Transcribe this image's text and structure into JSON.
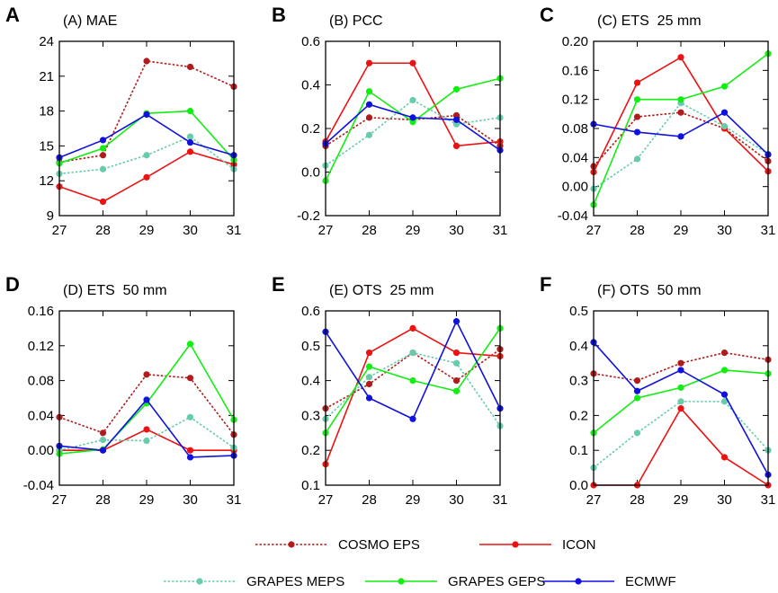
{
  "colors": {
    "COSMO EPS": "#b01c1c",
    "ICON": "#ee1111",
    "GRAPES MEPS": "#66ccaa",
    "GRAPES GEPS": "#11ee11",
    "ECMWF": "#1111dd"
  },
  "dash_style": {
    "COSMO EPS": "dotted",
    "ICON": "solid",
    "GRAPES MEPS": "dotted",
    "GRAPES GEPS": "solid",
    "ECMWF": "solid"
  },
  "legend": {
    "items": [
      "COSMO EPS",
      "ICON",
      "GRAPES MEPS",
      "GRAPES GEPS",
      "ECMWF"
    ]
  },
  "chart_data": [
    {
      "type": "line",
      "letter": "A",
      "title": "(A) MAE",
      "x": [
        27,
        28,
        29,
        30,
        31
      ],
      "ylim": [
        9,
        24
      ],
      "yticks": [
        "9",
        "12",
        "15",
        "18",
        "21",
        "24"
      ],
      "series": [
        {
          "name": "COSMO EPS",
          "values": [
            13.6,
            14.2,
            22.3,
            21.8,
            20.1
          ]
        },
        {
          "name": "ICON",
          "values": [
            11.5,
            10.2,
            12.3,
            14.5,
            13.4
          ]
        },
        {
          "name": "GRAPES MEPS",
          "values": [
            12.6,
            13.0,
            14.2,
            15.8,
            13.0
          ]
        },
        {
          "name": "GRAPES GEPS",
          "values": [
            13.5,
            14.8,
            17.8,
            18.0,
            13.8
          ]
        },
        {
          "name": "ECMWF",
          "values": [
            14.0,
            15.5,
            17.7,
            15.3,
            14.2
          ]
        }
      ]
    },
    {
      "type": "line",
      "letter": "B",
      "title": "(B) PCC",
      "x": [
        27,
        28,
        29,
        30,
        31
      ],
      "ylim": [
        -0.2,
        0.6
      ],
      "yticks": [
        "-0.2",
        "0.0",
        "0.2",
        "0.4",
        "0.6"
      ],
      "series": [
        {
          "name": "COSMO EPS",
          "values": [
            0.12,
            0.25,
            0.24,
            0.26,
            0.12
          ]
        },
        {
          "name": "ICON",
          "values": [
            0.14,
            0.5,
            0.5,
            0.12,
            0.14
          ]
        },
        {
          "name": "GRAPES MEPS",
          "values": [
            0.03,
            0.17,
            0.33,
            0.22,
            0.25
          ]
        },
        {
          "name": "GRAPES GEPS",
          "values": [
            -0.04,
            0.37,
            0.23,
            0.38,
            0.43
          ]
        },
        {
          "name": "ECMWF",
          "values": [
            0.13,
            0.31,
            0.25,
            0.24,
            0.1
          ]
        }
      ]
    },
    {
      "type": "line",
      "letter": "C",
      "title": "(C) ETS  25 mm",
      "x": [
        27,
        28,
        29,
        30,
        31
      ],
      "ylim": [
        -0.04,
        0.2
      ],
      "yticks": [
        "-0.04",
        "0.00",
        "0.04",
        "0.08",
        "0.12",
        "0.16",
        "0.20"
      ],
      "series": [
        {
          "name": "COSMO EPS",
          "values": [
            0.028,
            0.096,
            0.102,
            0.08,
            0.035
          ]
        },
        {
          "name": "ICON",
          "values": [
            0.02,
            0.143,
            0.178,
            0.08,
            0.021
          ]
        },
        {
          "name": "GRAPES MEPS",
          "values": [
            -0.003,
            0.038,
            0.115,
            0.083,
            0.045
          ]
        },
        {
          "name": "GRAPES GEPS",
          "values": [
            -0.025,
            0.12,
            0.12,
            0.138,
            0.183
          ]
        },
        {
          "name": "ECMWF",
          "values": [
            0.086,
            0.075,
            0.069,
            0.102,
            0.044
          ]
        }
      ]
    },
    {
      "type": "line",
      "letter": "D",
      "title": "(D) ETS  50 mm",
      "x": [
        27,
        28,
        29,
        30,
        31
      ],
      "ylim": [
        -0.04,
        0.16
      ],
      "yticks": [
        "-0.04",
        "0.00",
        "0.04",
        "0.08",
        "0.12",
        "0.16"
      ],
      "series": [
        {
          "name": "COSMO EPS",
          "values": [
            0.038,
            0.02,
            0.087,
            0.083,
            0.018
          ]
        },
        {
          "name": "ICON",
          "values": [
            0.0,
            0.0,
            0.024,
            0.0,
            0.0
          ]
        },
        {
          "name": "GRAPES MEPS",
          "values": [
            0.0,
            0.012,
            0.011,
            0.038,
            0.003
          ]
        },
        {
          "name": "GRAPES GEPS",
          "values": [
            -0.004,
            0.001,
            0.054,
            0.122,
            0.035
          ]
        },
        {
          "name": "ECMWF",
          "values": [
            0.005,
            0.0,
            0.058,
            -0.008,
            -0.006
          ]
        }
      ]
    },
    {
      "type": "line",
      "letter": "E",
      "title": "(E) OTS  25 mm",
      "x": [
        27,
        28,
        29,
        30,
        31
      ],
      "ylim": [
        0.1,
        0.6
      ],
      "yticks": [
        "0.1",
        "0.2",
        "0.3",
        "0.4",
        "0.5",
        "0.6"
      ],
      "series": [
        {
          "name": "COSMO EPS",
          "values": [
            0.32,
            0.39,
            0.48,
            0.4,
            0.49
          ]
        },
        {
          "name": "ICON",
          "values": [
            0.16,
            0.48,
            0.55,
            0.48,
            0.47
          ]
        },
        {
          "name": "GRAPES MEPS",
          "values": [
            0.29,
            0.41,
            0.48,
            0.45,
            0.27
          ]
        },
        {
          "name": "GRAPES GEPS",
          "values": [
            0.25,
            0.44,
            0.4,
            0.37,
            0.55
          ]
        },
        {
          "name": "ECMWF",
          "values": [
            0.54,
            0.35,
            0.29,
            0.57,
            0.32
          ]
        }
      ]
    },
    {
      "type": "line",
      "letter": "F",
      "title": "(F) OTS  50 mm",
      "x": [
        27,
        28,
        29,
        30,
        31
      ],
      "ylim": [
        0.0,
        0.5
      ],
      "yticks": [
        "0.0",
        "0.1",
        "0.2",
        "0.3",
        "0.4",
        "0.5"
      ],
      "series": [
        {
          "name": "COSMO EPS",
          "values": [
            0.32,
            0.3,
            0.35,
            0.38,
            0.36
          ]
        },
        {
          "name": "ICON",
          "values": [
            0.0,
            0.0,
            0.22,
            0.08,
            0.0
          ]
        },
        {
          "name": "GRAPES MEPS",
          "values": [
            0.05,
            0.15,
            0.24,
            0.24,
            0.1
          ]
        },
        {
          "name": "GRAPES GEPS",
          "values": [
            0.15,
            0.25,
            0.28,
            0.33,
            0.32
          ]
        },
        {
          "name": "ECMWF",
          "values": [
            0.41,
            0.27,
            0.33,
            0.26,
            0.03
          ]
        }
      ]
    }
  ]
}
